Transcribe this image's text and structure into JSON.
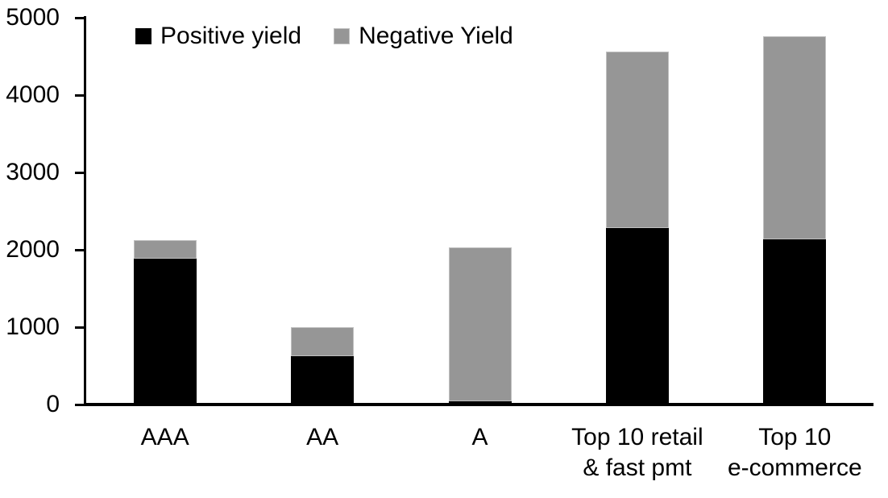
{
  "chart_data": {
    "type": "bar",
    "stacked": true,
    "title": "",
    "xlabel": "",
    "ylabel": "",
    "categories": [
      "AAA",
      "AA",
      "A",
      "Top 10 retail\n& fast pmt",
      "Top 10\ne-commerce"
    ],
    "series": [
      {
        "name": "Positive yield",
        "color": "#000000",
        "border": "",
        "values": [
          1890,
          620,
          40,
          2280,
          2140
        ]
      },
      {
        "name": "Negative Yield",
        "color": "#969696",
        "border": "#c0c0c0",
        "values": [
          230,
          380,
          1990,
          2280,
          2620
        ]
      }
    ],
    "totals": [
      2120,
      1000,
      2030,
      4560,
      4760
    ],
    "ylim": [
      0,
      5000
    ],
    "yticks": [
      0,
      1000,
      2000,
      3000,
      4000,
      5000
    ],
    "grid": false,
    "legend_position": "top",
    "colors": {
      "positive": "#000000",
      "negative": "#969696",
      "axis": "#000000",
      "background": "#ffffff"
    }
  }
}
